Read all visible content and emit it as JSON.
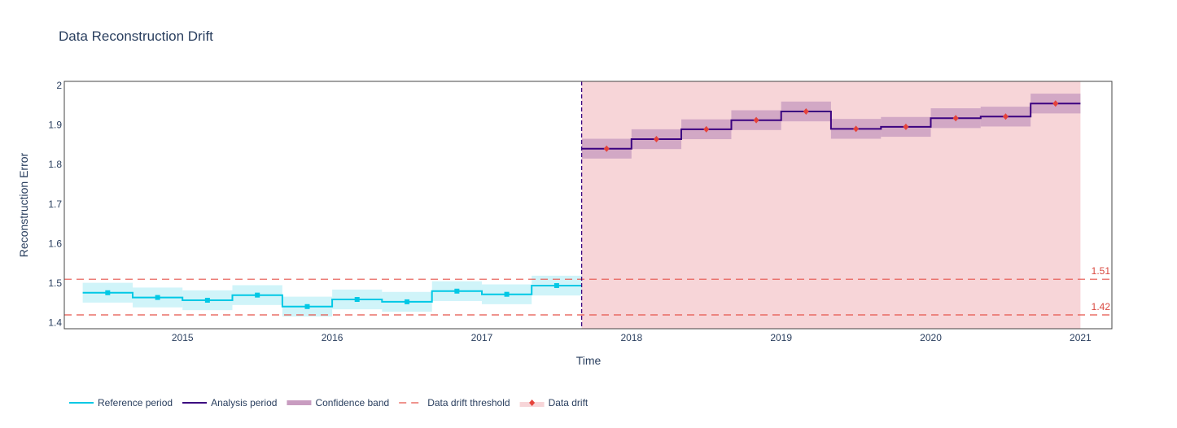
{
  "chart_data": {
    "type": "line",
    "title": "Data Reconstruction Drift",
    "xlabel": "Time",
    "ylabel": "Reconstruction Error",
    "xlim": [
      2014.21,
      2021.21
    ],
    "ylim": [
      1.385,
      2.01
    ],
    "x_ticks": [
      {
        "value": 2015,
        "label": "2015"
      },
      {
        "value": 2016,
        "label": "2016"
      },
      {
        "value": 2017,
        "label": "2017"
      },
      {
        "value": 2018,
        "label": "2018"
      },
      {
        "value": 2019,
        "label": "2019"
      },
      {
        "value": 2020,
        "label": "2020"
      },
      {
        "value": 2021,
        "label": "2021"
      }
    ],
    "y_ticks": [
      {
        "value": 1.4,
        "label": "1.4"
      },
      {
        "value": 1.5,
        "label": "1.5"
      },
      {
        "value": 1.6,
        "label": "1.6"
      },
      {
        "value": 1.7,
        "label": "1.7"
      },
      {
        "value": 1.8,
        "label": "1.8"
      },
      {
        "value": 1.9,
        "label": "1.9"
      },
      {
        "value": 2.0,
        "label": "2"
      }
    ],
    "thresholds": [
      {
        "value": 1.51,
        "label": "1.51"
      },
      {
        "value": 1.42,
        "label": "1.42"
      }
    ],
    "period_split": 2017.667,
    "series": [
      {
        "name": "Reference period",
        "color": "#00c8e5",
        "band_color": "#c8f2f8",
        "marker": "square",
        "chunks": [
          {
            "start": 2014.333,
            "end": 2014.667,
            "value": 1.476,
            "upper": 1.501,
            "lower": 1.451
          },
          {
            "start": 2014.667,
            "end": 2015.0,
            "value": 1.464,
            "upper": 1.489,
            "lower": 1.439
          },
          {
            "start": 2015.0,
            "end": 2015.333,
            "value": 1.457,
            "upper": 1.482,
            "lower": 1.432
          },
          {
            "start": 2015.333,
            "end": 2015.667,
            "value": 1.47,
            "upper": 1.495,
            "lower": 1.445
          },
          {
            "start": 2015.667,
            "end": 2016.0,
            "value": 1.441,
            "upper": 1.466,
            "lower": 1.416
          },
          {
            "start": 2016.0,
            "end": 2016.333,
            "value": 1.459,
            "upper": 1.484,
            "lower": 1.434
          },
          {
            "start": 2016.333,
            "end": 2016.667,
            "value": 1.453,
            "upper": 1.478,
            "lower": 1.428
          },
          {
            "start": 2016.667,
            "end": 2017.0,
            "value": 1.48,
            "upper": 1.505,
            "lower": 1.455
          },
          {
            "start": 2017.0,
            "end": 2017.333,
            "value": 1.472,
            "upper": 1.497,
            "lower": 1.447
          },
          {
            "start": 2017.333,
            "end": 2017.667,
            "value": 1.494,
            "upper": 1.519,
            "lower": 1.469
          }
        ]
      },
      {
        "name": "Analysis period",
        "color": "#3b0280",
        "band_color": "#c89cc0",
        "marker": "diamond",
        "marker_color": "#e5433b",
        "chunks": [
          {
            "start": 2017.667,
            "end": 2018.0,
            "value": 1.84,
            "upper": 1.865,
            "lower": 1.815
          },
          {
            "start": 2018.0,
            "end": 2018.333,
            "value": 1.864,
            "upper": 1.889,
            "lower": 1.839
          },
          {
            "start": 2018.333,
            "end": 2018.667,
            "value": 1.889,
            "upper": 1.914,
            "lower": 1.864
          },
          {
            "start": 2018.667,
            "end": 2019.0,
            "value": 1.912,
            "upper": 1.937,
            "lower": 1.887
          },
          {
            "start": 2019.0,
            "end": 2019.333,
            "value": 1.934,
            "upper": 1.959,
            "lower": 1.909
          },
          {
            "start": 2019.333,
            "end": 2019.667,
            "value": 1.89,
            "upper": 1.915,
            "lower": 1.865
          },
          {
            "start": 2019.667,
            "end": 2020.0,
            "value": 1.895,
            "upper": 1.92,
            "lower": 1.87
          },
          {
            "start": 2020.0,
            "end": 2020.333,
            "value": 1.917,
            "upper": 1.942,
            "lower": 1.892
          },
          {
            "start": 2020.333,
            "end": 2020.667,
            "value": 1.921,
            "upper": 1.946,
            "lower": 1.896
          },
          {
            "start": 2020.667,
            "end": 2021.0,
            "value": 1.954,
            "upper": 1.979,
            "lower": 1.929
          }
        ]
      }
    ],
    "legend": [
      {
        "key": "reference",
        "label": "Reference period"
      },
      {
        "key": "analysis",
        "label": "Analysis period"
      },
      {
        "key": "band",
        "label": "Confidence band"
      },
      {
        "key": "threshold",
        "label": "Data drift threshold"
      },
      {
        "key": "drift",
        "label": "Data drift"
      }
    ],
    "colors": {
      "threshold": "#e5534b",
      "threshold_label": "#d9483f",
      "drift_region": "#f7d5d8",
      "split_line": "#3b0280",
      "axis_text": "#2a3f5f",
      "frame": "#444444"
    },
    "legend_placement": "bottom"
  }
}
